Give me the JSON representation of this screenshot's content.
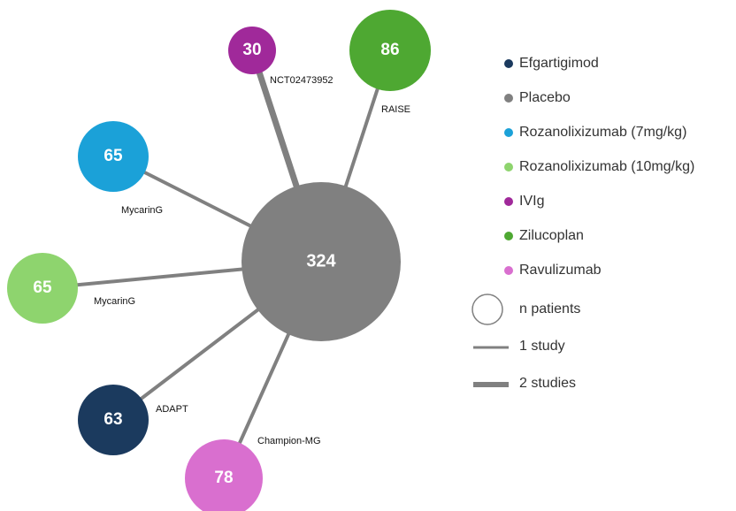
{
  "nodes": [
    {
      "label": "324"
    },
    {
      "label": "30"
    },
    {
      "label": "86"
    },
    {
      "label": "65"
    },
    {
      "label": "65"
    },
    {
      "label": "63"
    },
    {
      "label": "78"
    }
  ],
  "edges": [
    {
      "label": "NCT02473952"
    },
    {
      "label": "RAISE"
    },
    {
      "label": "MycarinG"
    },
    {
      "label": "MycarinG"
    },
    {
      "label": "ADAPT"
    },
    {
      "label": "Champion-MG"
    }
  ],
  "legend": {
    "entries": [
      {
        "label": "Efgartigimod",
        "color": "#1b3a5e"
      },
      {
        "label": "Placebo",
        "color": "#808080"
      },
      {
        "label": "Rozanolixizumab (7mg/kg)",
        "color": "#1ba1d8"
      },
      {
        "label": "Rozanolixizumab (10mg/kg)",
        "color": "#8ed46e"
      },
      {
        "label": "IVIg",
        "color": "#a0299a"
      },
      {
        "label": "Zilucoplan",
        "color": "#4ea832"
      },
      {
        "label": "Ravulizumab",
        "color": "#d96fcf"
      }
    ],
    "size_label": "n patients",
    "one_study": "1 study",
    "two_studies": "2 studies"
  }
}
